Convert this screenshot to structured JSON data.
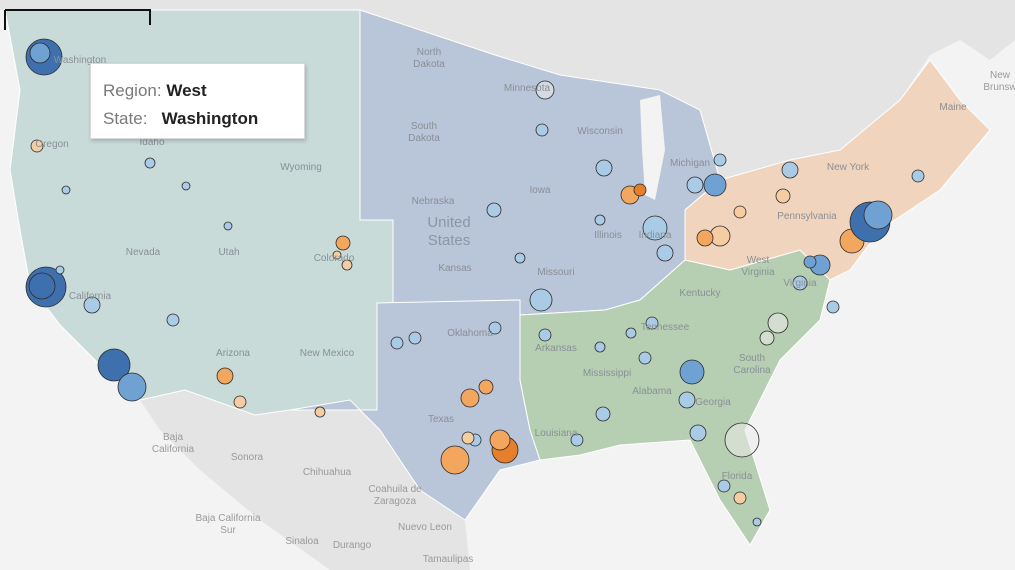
{
  "tooltip": {
    "rows": [
      {
        "key": "Region:",
        "value": "West"
      },
      {
        "key": "State:",
        "value": "Washington"
      }
    ]
  },
  "map": {
    "country_label": [
      "United",
      "States"
    ],
    "state_labels": [
      [
        "North",
        "Dakota"
      ],
      [
        "South",
        "Dakota"
      ],
      [
        "Minnesota"
      ],
      [
        "Wisconsin"
      ],
      [
        "Michigan"
      ],
      [
        "Iowa"
      ],
      [
        "Nebraska"
      ],
      [
        "Illinois"
      ],
      [
        "Indiana"
      ],
      [
        "Kansas"
      ],
      [
        "Missouri"
      ],
      [
        "Oklahoma"
      ],
      [
        "Arkansas"
      ],
      [
        "Tennessee"
      ],
      [
        "Kentucky"
      ],
      [
        "Mississippi"
      ],
      [
        "Alabama"
      ],
      [
        "Georgia"
      ],
      [
        "Louisiana"
      ],
      [
        "Texas"
      ],
      [
        "New Mexico"
      ],
      [
        "Arizona"
      ],
      [
        "Colorado"
      ],
      [
        "Utah"
      ],
      [
        "Nevada"
      ],
      [
        "California"
      ],
      [
        "Oregon"
      ],
      [
        "Idaho"
      ],
      [
        "Wyoming"
      ],
      [
        "Washington"
      ],
      [
        "Pennsylvania"
      ],
      [
        "New York"
      ],
      [
        "Maine"
      ],
      [
        "West",
        "Virginia"
      ],
      [
        "Virginia"
      ],
      [
        "South",
        "Carolina"
      ],
      [
        "Florida"
      ]
    ],
    "other_labels": [
      [
        "Baja",
        "California"
      ],
      [
        "Sonora"
      ],
      [
        "Chihuahua"
      ],
      [
        "Coahuila de",
        "Zaragoza"
      ],
      [
        "Nuevo Leon"
      ],
      [
        "Baja California",
        "Sur"
      ],
      [
        "Sinaloa"
      ],
      [
        "Durango"
      ],
      [
        "Tamaulipas"
      ],
      [
        "New",
        "Brunsw"
      ]
    ]
  }
}
